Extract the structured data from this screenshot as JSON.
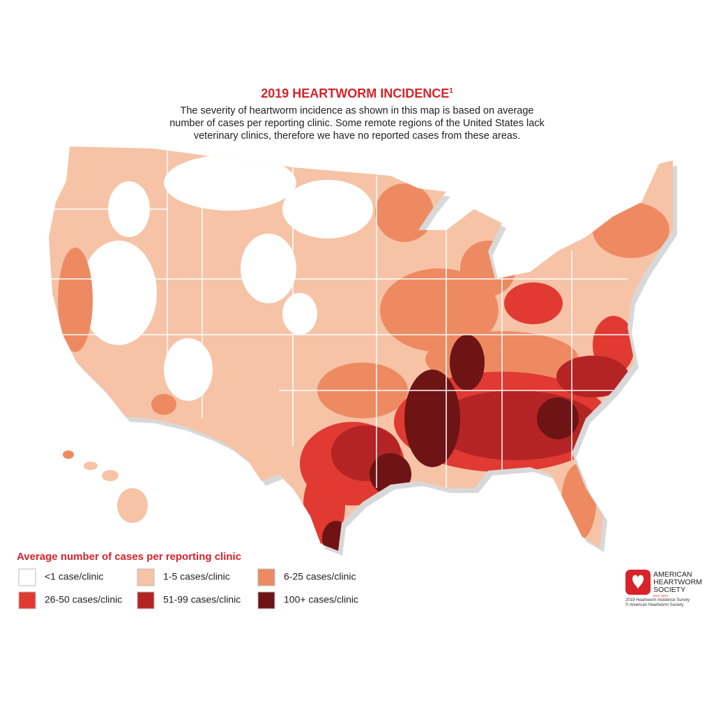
{
  "header": {
    "title": "2019 HEARTWORM INCIDENCE",
    "title_note": "1",
    "description": [
      "The severity of heartworm incidence as shown in this map is based on average",
      "number of cases per reporting clinic. Some remote regions of the United States lack",
      "veterinary clinics, therefore we have no reported cases from these areas."
    ]
  },
  "legend": {
    "title": "Average number of cases per reporting clinic",
    "items": [
      {
        "label": "<1 case/clinic",
        "color": "#ffffff"
      },
      {
        "label": "1-5 cases/clinic",
        "color": "#f6c3a6"
      },
      {
        "label": "6-25 cases/clinic",
        "color": "#ee8a62"
      },
      {
        "label": "26-50 cases/clinic",
        "color": "#e03a32"
      },
      {
        "label": "51-99 cases/clinic",
        "color": "#b52424"
      },
      {
        "label": "100+ cases/clinic",
        "color": "#6e1414"
      }
    ]
  },
  "logo": {
    "name": [
      "AMERICAN",
      "HEARTWORM",
      "SOCIETY"
    ],
    "established": "EST. 1974",
    "credits": [
      "2019 Heartworm Incidence Survey",
      "© American Heartworm Society"
    ]
  }
}
